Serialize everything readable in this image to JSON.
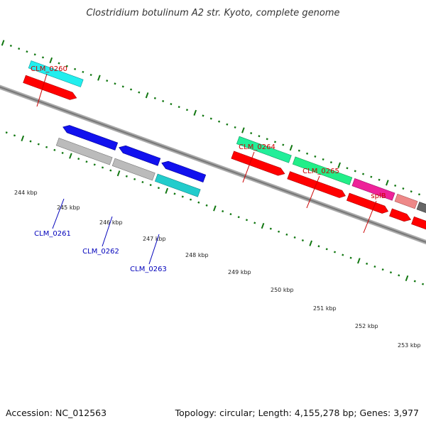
{
  "title": "Clostridium botulinum A2 str. Kyoto, complete genome",
  "footer": {
    "accession": "Accession: NC_012563",
    "topology": "Topology: circular; Length: 4,155,278 bp; Genes: 3,977"
  },
  "scale_labels": [
    "244 kbp",
    "245 kbp",
    "246 kbp",
    "247 kbp",
    "248 kbp",
    "249 kbp",
    "250 kbp",
    "251 kbp",
    "252 kbp",
    "253 kbp"
  ],
  "gene_labels": {
    "clm0260": "CLM_0260",
    "clm0261": "CLM_0261",
    "clm0262": "CLM_0262",
    "clm0263": "CLM_0263",
    "clm0264": "CLM_0264",
    "clm0265": "CLM_0265",
    "splb": "splB"
  },
  "colors": {
    "cds": "#ff0000",
    "clm0260": "#22eeee",
    "clm0261": "#bbbbbb",
    "clm0262": "#bbbbbb",
    "clm0263": "#22cccc",
    "clm0264": "#22ee99",
    "clm0265": "#22ee88",
    "splb": "#ee2299",
    "blue_genes": "#1111ee",
    "backbone": "#888888",
    "tick_marks": "#117711"
  }
}
